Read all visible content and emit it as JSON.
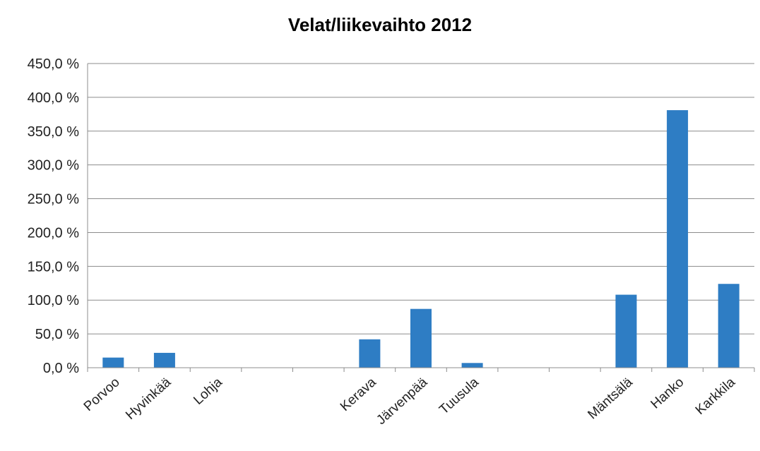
{
  "chart_data": {
    "type": "bar",
    "title": "Velat/liikevaihto 2012",
    "xlabel": "",
    "ylabel": "",
    "categories": [
      "Porvoo",
      "Hyvinkää",
      "Lohja",
      "",
      "",
      "Kerava",
      "Järvenpää",
      "Tuusula",
      "",
      "",
      "Mäntsälä",
      "Hanko",
      "Karkkila"
    ],
    "values": [
      15.0,
      22.0,
      null,
      null,
      null,
      42.0,
      87.0,
      7.0,
      null,
      null,
      108.0,
      381.0,
      124.0
    ],
    "ylim": [
      0,
      450
    ],
    "yticks": [
      0,
      50,
      100,
      150,
      200,
      250,
      300,
      350,
      400,
      450
    ],
    "ytick_labels": [
      "0,0 %",
      "50,0 %",
      "100,0 %",
      "150,0 %",
      "200,0 %",
      "250,0 %",
      "300,0 %",
      "350,0 %",
      "400,0 %",
      "450,0 %"
    ],
    "grid": true,
    "legend": "none",
    "bar_color": "#2e7dc4",
    "gridline_color": "#8c8c8c"
  }
}
